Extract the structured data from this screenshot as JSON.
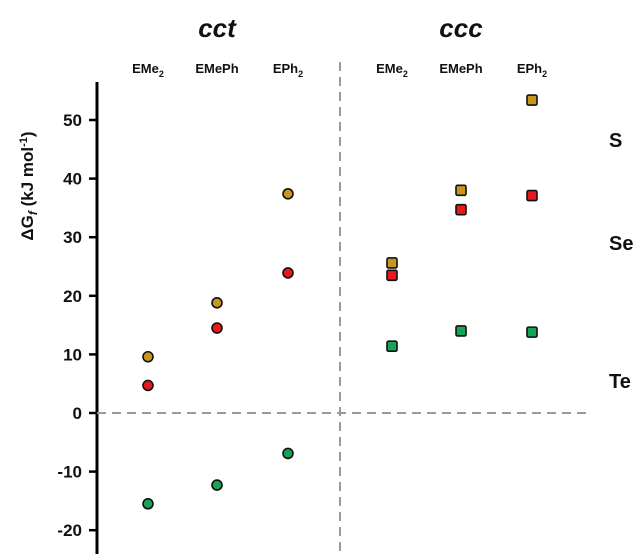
{
  "chart_data": {
    "type": "scatter",
    "ylabel": {
      "prefix": "ΔG",
      "italic_var": "f",
      "unit": " (kJ mol",
      "sup": "-1",
      "close": ")"
    },
    "yticks": [
      -20,
      -10,
      0,
      10,
      20,
      30,
      40,
      50
    ],
    "ylim": [
      -23.5,
      56
    ],
    "grid": false,
    "groups": [
      {
        "name": "cct",
        "marker": "circle",
        "categories": [
          {
            "base": "EMe",
            "sub": "2"
          },
          {
            "base": "EMePh",
            "sub": ""
          },
          {
            "base": "EPh",
            "sub": "2"
          }
        ]
      },
      {
        "name": "ccc",
        "marker": "square",
        "categories": [
          {
            "base": "EMe",
            "sub": "2"
          },
          {
            "base": "EMePh",
            "sub": ""
          },
          {
            "base": "EPh",
            "sub": "2"
          }
        ]
      }
    ],
    "series": [
      {
        "name": "S",
        "color": "#C8961E",
        "values": {
          "cct": [
            9.6,
            18.8,
            37.4
          ],
          "ccc": [
            25.6,
            38.0,
            53.4
          ]
        }
      },
      {
        "name": "Se",
        "color": "#E8191E",
        "values": {
          "cct": [
            4.7,
            14.5,
            23.9
          ],
          "ccc": [
            23.5,
            34.7,
            37.1
          ]
        }
      },
      {
        "name": "Te",
        "color": "#14A556",
        "values": {
          "cct": [
            -15.5,
            -12.3,
            -6.9
          ],
          "ccc": [
            11.4,
            14.0,
            13.8
          ]
        }
      }
    ]
  }
}
